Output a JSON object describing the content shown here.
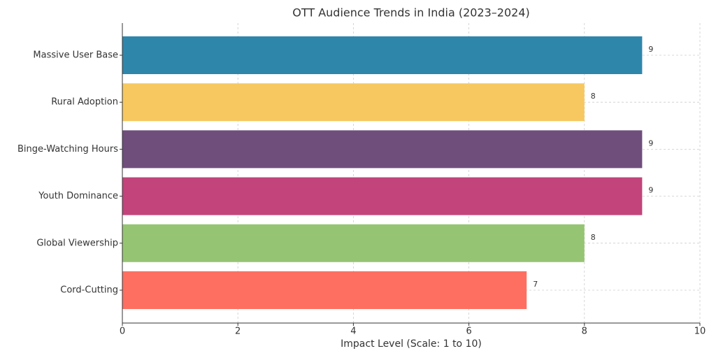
{
  "chart_data": {
    "type": "barh",
    "title": "OTT Audience Trends in India (2023–2024)",
    "x_label": "Impact Level (Scale: 1 to 10)",
    "categories": [
      "Massive User Base",
      "Rural Adoption",
      "Binge-Watching Hours",
      "Youth Dominance",
      "Global Viewership",
      "Cord-Cutting"
    ],
    "values": [
      9,
      8,
      9,
      9,
      8,
      7
    ],
    "colors": [
      "#2e86ab",
      "#f6c85f",
      "#6f4e7c",
      "#c2447a",
      "#95c572",
      "#ff6f61"
    ],
    "xlim": [
      0,
      10
    ],
    "xticks": [
      0,
      2,
      4,
      6,
      8,
      10
    ],
    "grid": true
  }
}
